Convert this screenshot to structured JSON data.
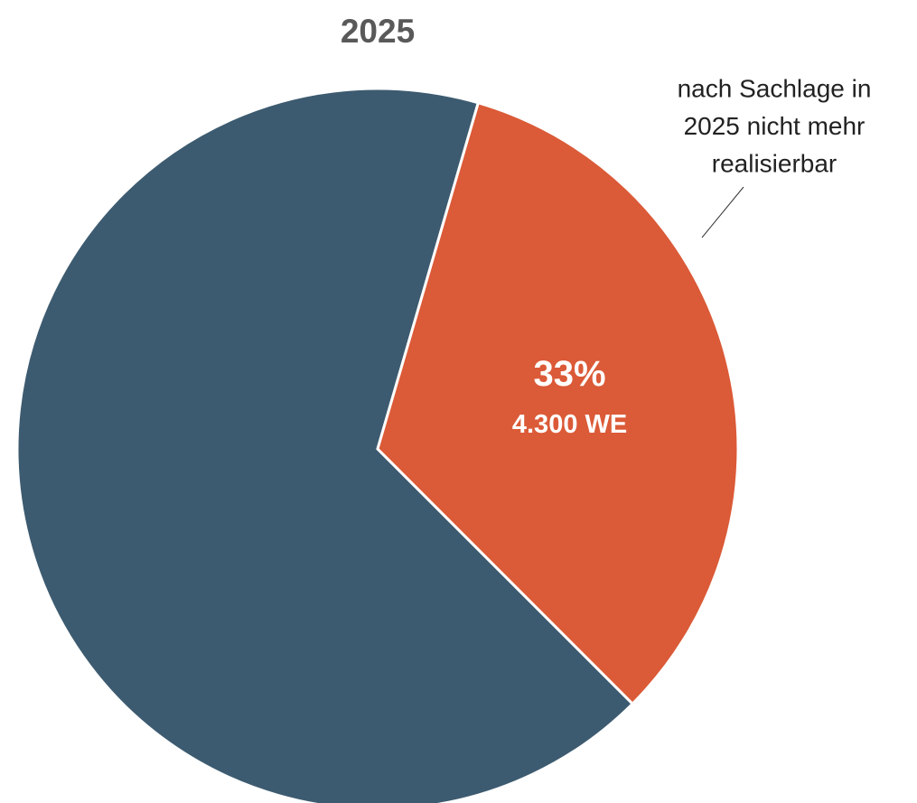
{
  "chart_data": {
    "type": "pie",
    "title": "2025",
    "categories": [
      null,
      null
    ],
    "values": [
      67,
      33
    ],
    "value_labels": [
      null,
      "33%"
    ],
    "sublabels": [
      null,
      "4.300 WE"
    ],
    "colors": [
      "#3d5b70",
      "#db5a37"
    ],
    "annotation": [
      "nach Sachlage in",
      "2025 nicht mehr",
      "realisierbar"
    ]
  }
}
